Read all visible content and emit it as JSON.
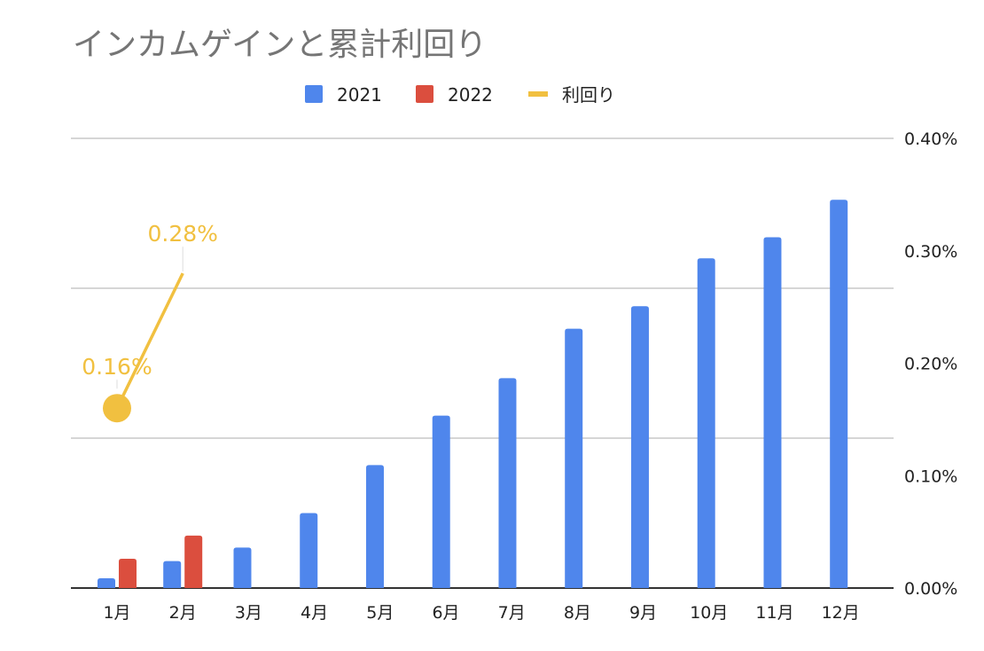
{
  "chart_data": {
    "type": "bar",
    "title": "インカムゲインと累計利回り",
    "categories": [
      "1月",
      "2月",
      "3月",
      "4月",
      "5月",
      "6月",
      "7月",
      "8月",
      "9月",
      "10月",
      "11月",
      "12月"
    ],
    "series": [
      {
        "name": "2021",
        "type": "bar",
        "axis": "left",
        "color": "#4f86ec",
        "values": [
          0.065,
          0.18,
          0.27,
          0.5,
          0.82,
          1.15,
          1.4,
          1.73,
          1.88,
          2.2,
          2.34,
          2.59
        ]
      },
      {
        "name": "2022",
        "type": "bar",
        "axis": "left",
        "color": "#db4e3e",
        "values": [
          0.195,
          0.35,
          null,
          null,
          null,
          null,
          null,
          null,
          null,
          null,
          null,
          null
        ]
      },
      {
        "name": "利回り",
        "type": "line",
        "axis": "right",
        "color": "#f1c040",
        "values": [
          0.16,
          0.28,
          null,
          null,
          null,
          null,
          null,
          null,
          null,
          null,
          null,
          null
        ],
        "data_labels": [
          "0.16%",
          "0.28%"
        ]
      }
    ],
    "left_axis": {
      "range": [
        0,
        3
      ],
      "labels_shown": false,
      "gridlines": 3
    },
    "right_axis": {
      "range": [
        0,
        0.4
      ],
      "ticks": [
        "0.00%",
        "0.10%",
        "0.20%",
        "0.30%",
        "0.40%"
      ]
    },
    "legend": {
      "position": "top",
      "entries": [
        "2021",
        "2022",
        "利回り"
      ]
    },
    "grid": true
  }
}
